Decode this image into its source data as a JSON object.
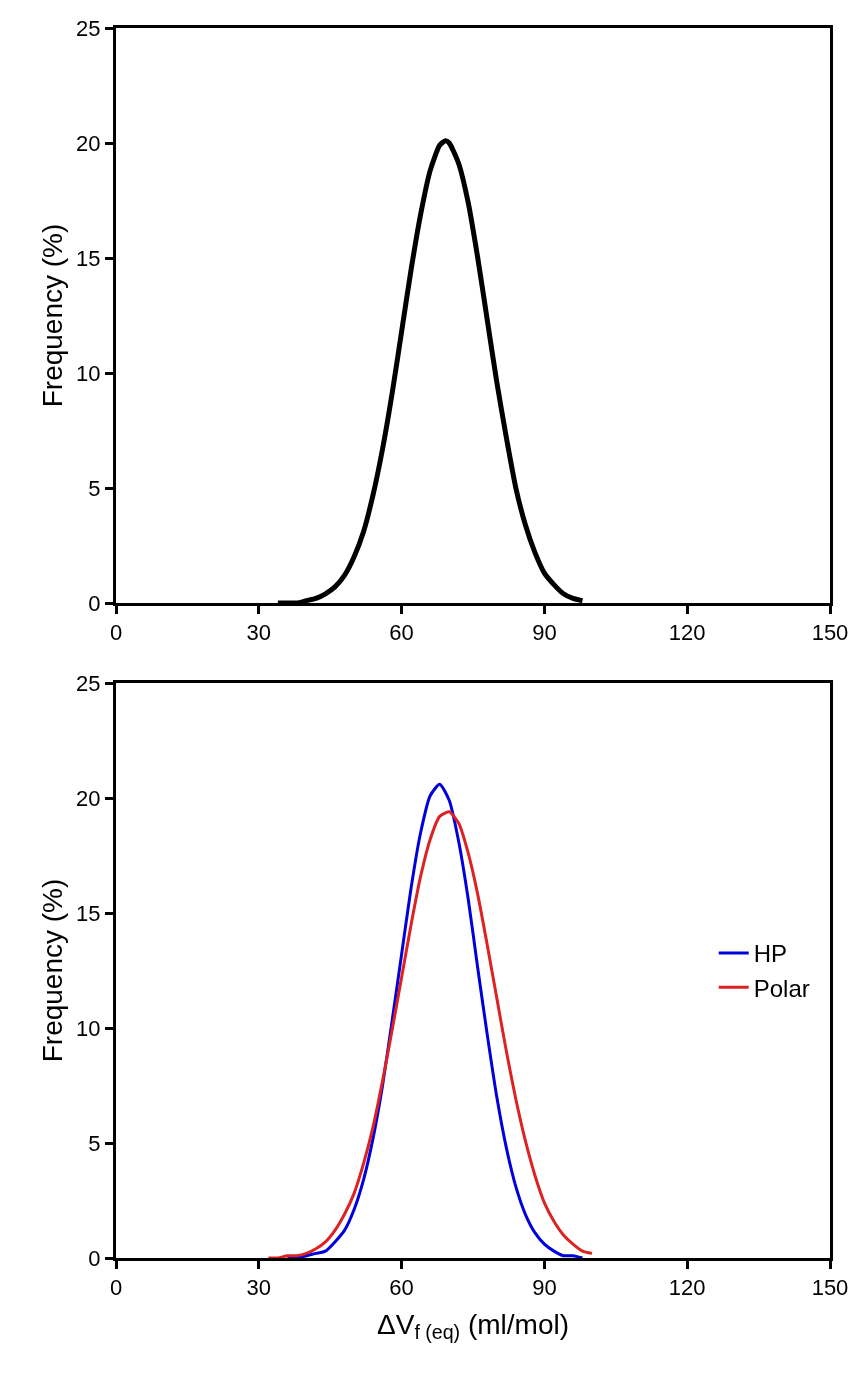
{
  "chart_data": [
    {
      "type": "line",
      "ylabel": "Frequency (%)",
      "xlim": [
        0,
        150
      ],
      "xticks": [
        0,
        30,
        60,
        90,
        120,
        150
      ],
      "ylim": [
        0,
        25
      ],
      "yticks": [
        0,
        5,
        10,
        15,
        20,
        25
      ],
      "legend": false,
      "marker": "none",
      "line_style": "solid",
      "series": [
        {
          "color": "#000000",
          "x": [
            34,
            36,
            38,
            40,
            42,
            44,
            46,
            48,
            50,
            52,
            54,
            56,
            58,
            60,
            62,
            64,
            66,
            68,
            69.2,
            70,
            72,
            74,
            76,
            78,
            80,
            82,
            84,
            86,
            88,
            90,
            92,
            94,
            96,
            98
          ],
          "values": [
            0.0,
            0.0,
            0.0,
            0.1,
            0.2,
            0.4,
            0.7,
            1.2,
            2.0,
            3.1,
            4.7,
            6.7,
            9.1,
            11.8,
            14.5,
            16.9,
            18.8,
            19.9,
            20.1,
            20.0,
            19.1,
            17.4,
            15.0,
            12.3,
            9.6,
            7.2,
            5.0,
            3.4,
            2.2,
            1.3,
            0.8,
            0.4,
            0.2,
            0.1
          ]
        }
      ]
    },
    {
      "type": "line",
      "xlabel": "ΔV$_{f (eq)}$ (ml/mol)",
      "ylabel": "Frequency (%)",
      "xlim": [
        0,
        150
      ],
      "xticks": [
        0,
        30,
        60,
        90,
        120,
        150
      ],
      "ylim": [
        0,
        25
      ],
      "yticks": [
        0,
        5,
        10,
        15,
        20,
        25
      ],
      "legend": "right",
      "marker": "none",
      "line_style": "solid",
      "series": [
        {
          "name": "HP",
          "color": "#0000dd",
          "x": [
            36,
            38,
            40,
            42,
            44,
            46,
            48,
            50,
            52,
            54,
            56,
            58,
            60,
            62,
            64,
            66,
            68,
            70,
            72,
            74,
            76,
            78,
            80,
            82,
            84,
            86,
            88,
            90,
            92,
            94,
            96,
            98
          ],
          "values": [
            0.0,
            0.0,
            0.1,
            0.2,
            0.3,
            0.7,
            1.2,
            2.1,
            3.4,
            5.2,
            7.5,
            10.3,
            13.2,
            16.1,
            18.5,
            20.1,
            20.6,
            19.9,
            18.1,
            15.6,
            12.6,
            9.7,
            7.0,
            4.8,
            3.1,
            1.9,
            1.1,
            0.6,
            0.3,
            0.1,
            0.1,
            0.0
          ]
        },
        {
          "name": "Polar",
          "color": "#dd2222",
          "x": [
            32,
            34,
            36,
            38,
            40,
            42,
            44,
            46,
            48,
            50,
            52,
            54,
            56,
            58,
            60,
            62,
            64,
            66,
            68,
            70,
            72,
            74,
            76,
            78,
            80,
            82,
            84,
            86,
            88,
            90,
            92,
            94,
            96,
            98,
            100
          ],
          "values": [
            0.0,
            0.0,
            0.1,
            0.1,
            0.2,
            0.4,
            0.7,
            1.2,
            1.9,
            2.8,
            4.1,
            5.7,
            7.7,
            9.9,
            12.2,
            14.5,
            16.6,
            18.2,
            19.2,
            19.4,
            18.9,
            17.6,
            15.8,
            13.6,
            11.3,
            9.0,
            6.9,
            5.1,
            3.6,
            2.4,
            1.6,
            1.0,
            0.6,
            0.3,
            0.2
          ]
        }
      ]
    }
  ]
}
